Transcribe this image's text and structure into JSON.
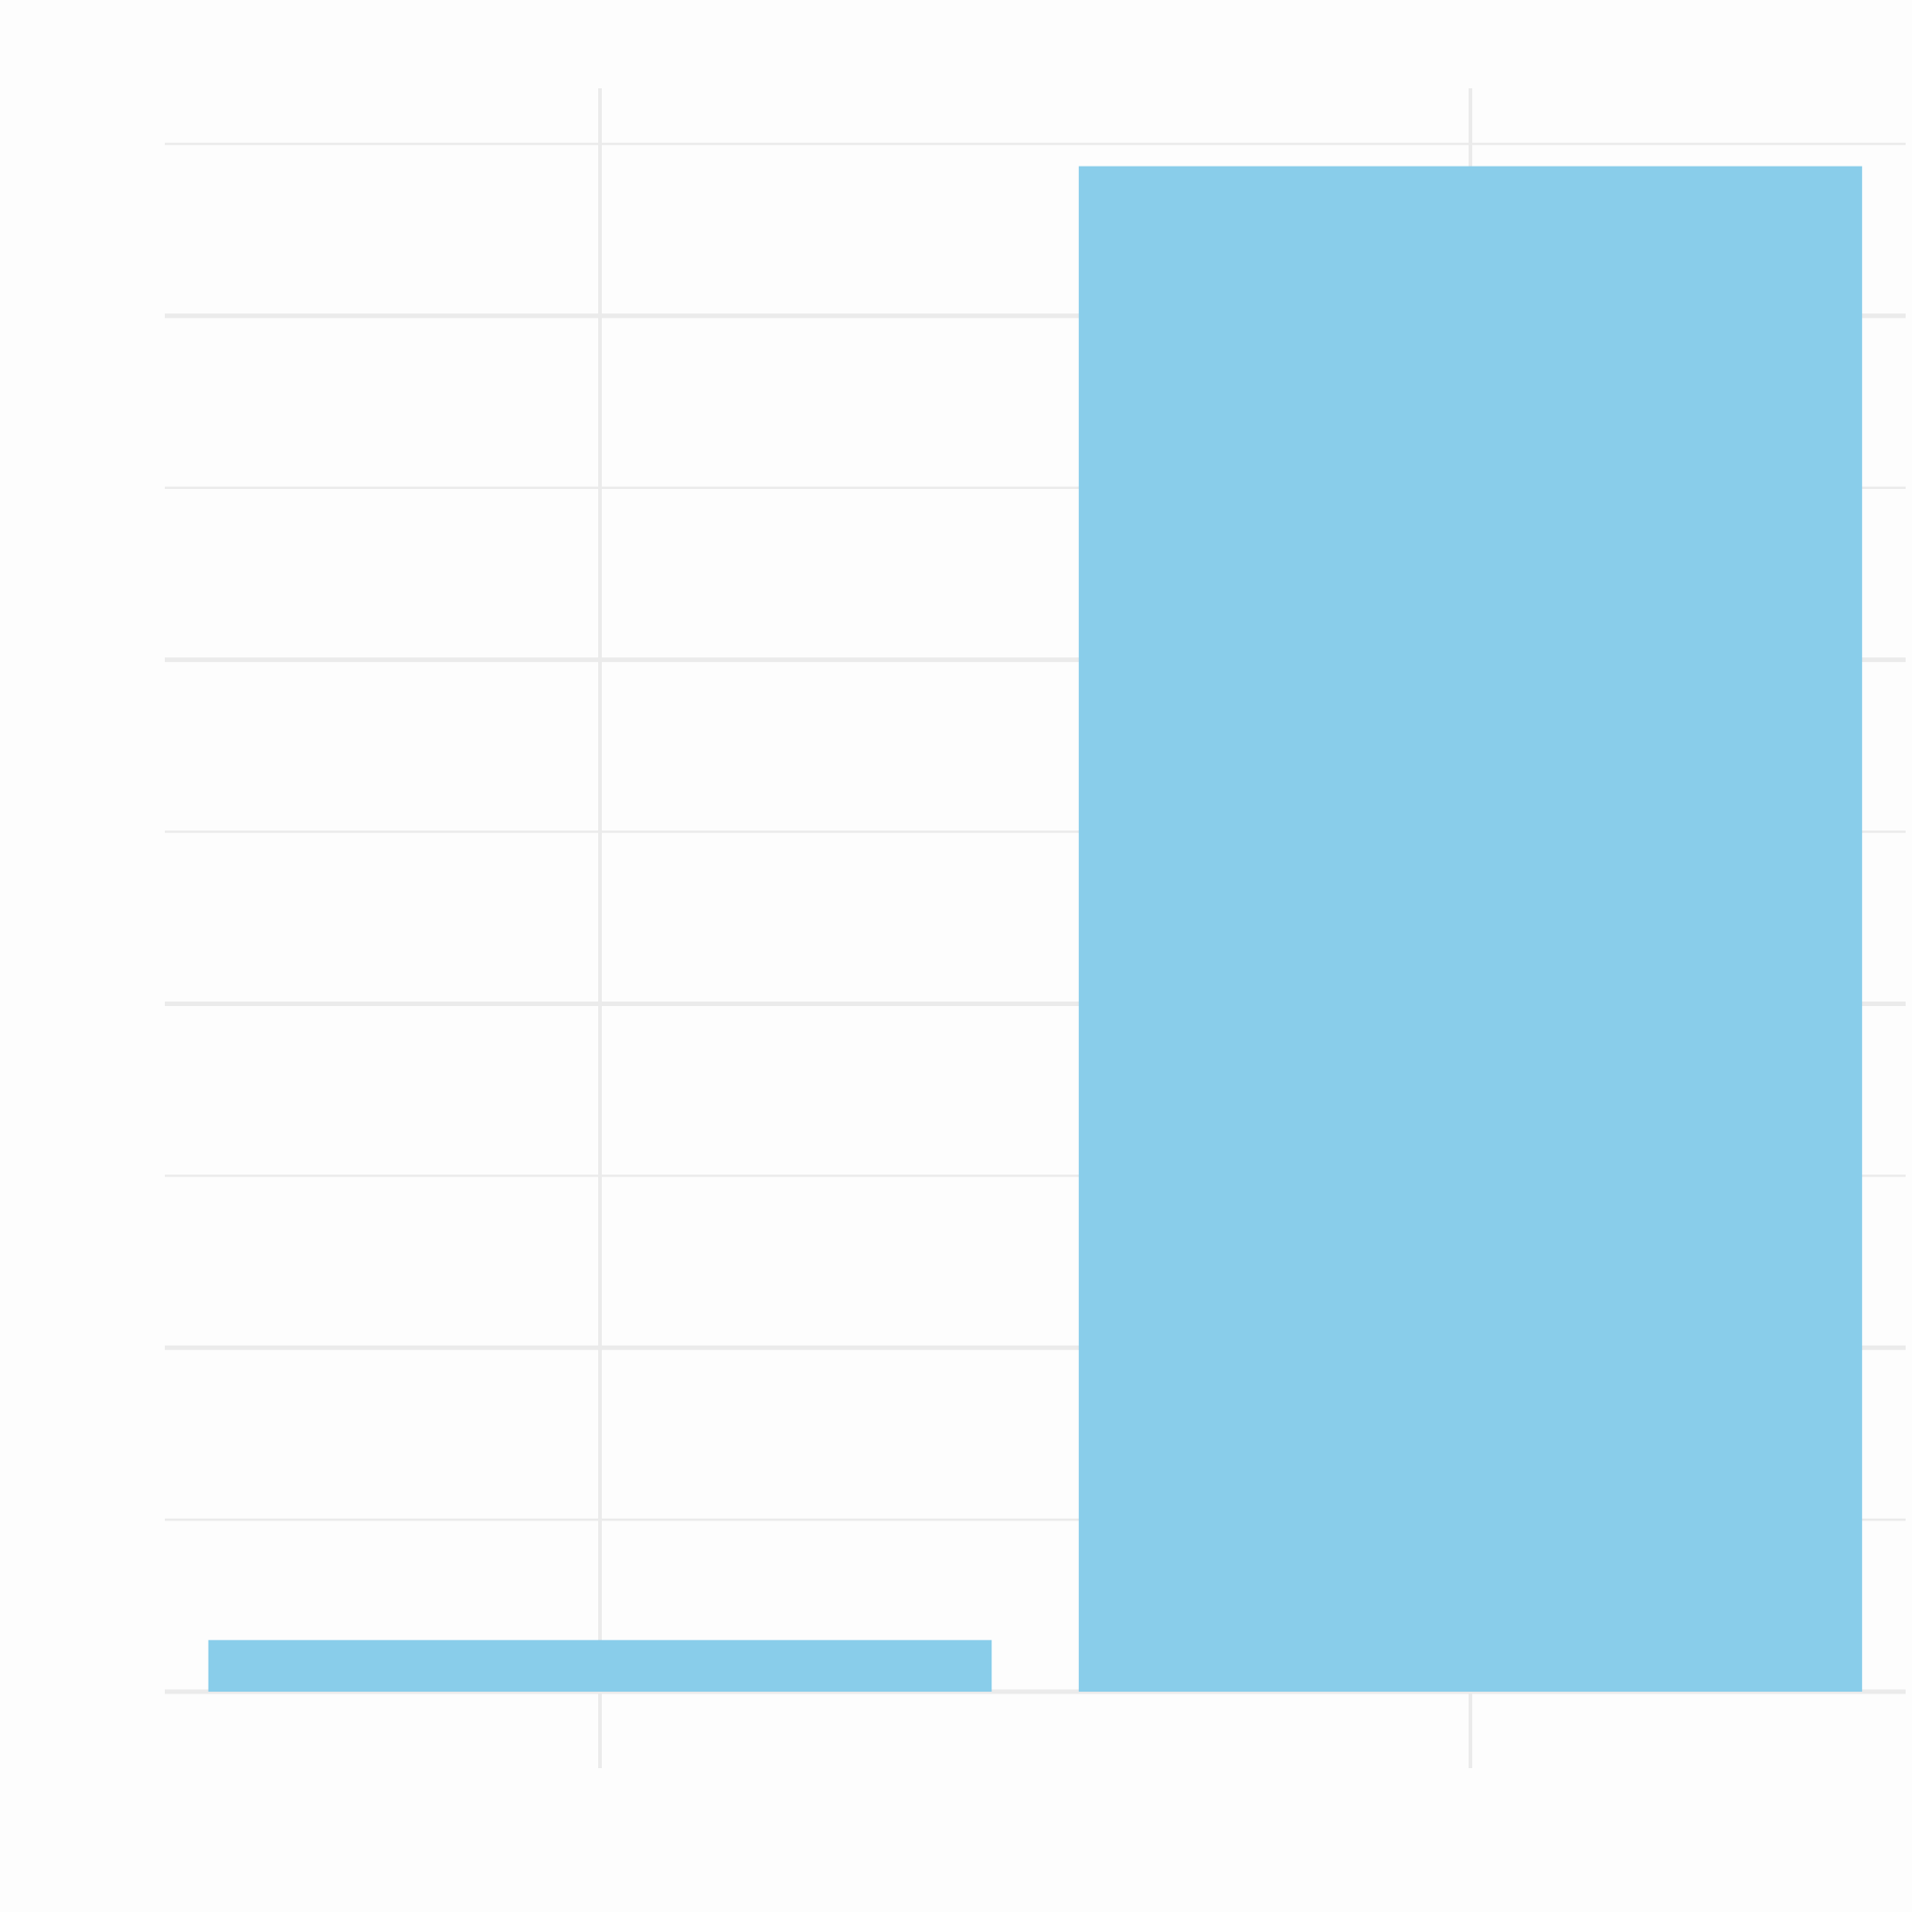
{
  "chart_data": {
    "type": "bar",
    "categories": [
      "",
      ""
    ],
    "values": [
      0.3,
      8.87
    ],
    "title": "",
    "xlabel": "",
    "ylabel": "",
    "ylim": [
      0,
      9
    ],
    "grid": true,
    "bar_color": "#89cdea",
    "grid_color": "#ebebeb",
    "background_color": "#fdfdfd"
  }
}
